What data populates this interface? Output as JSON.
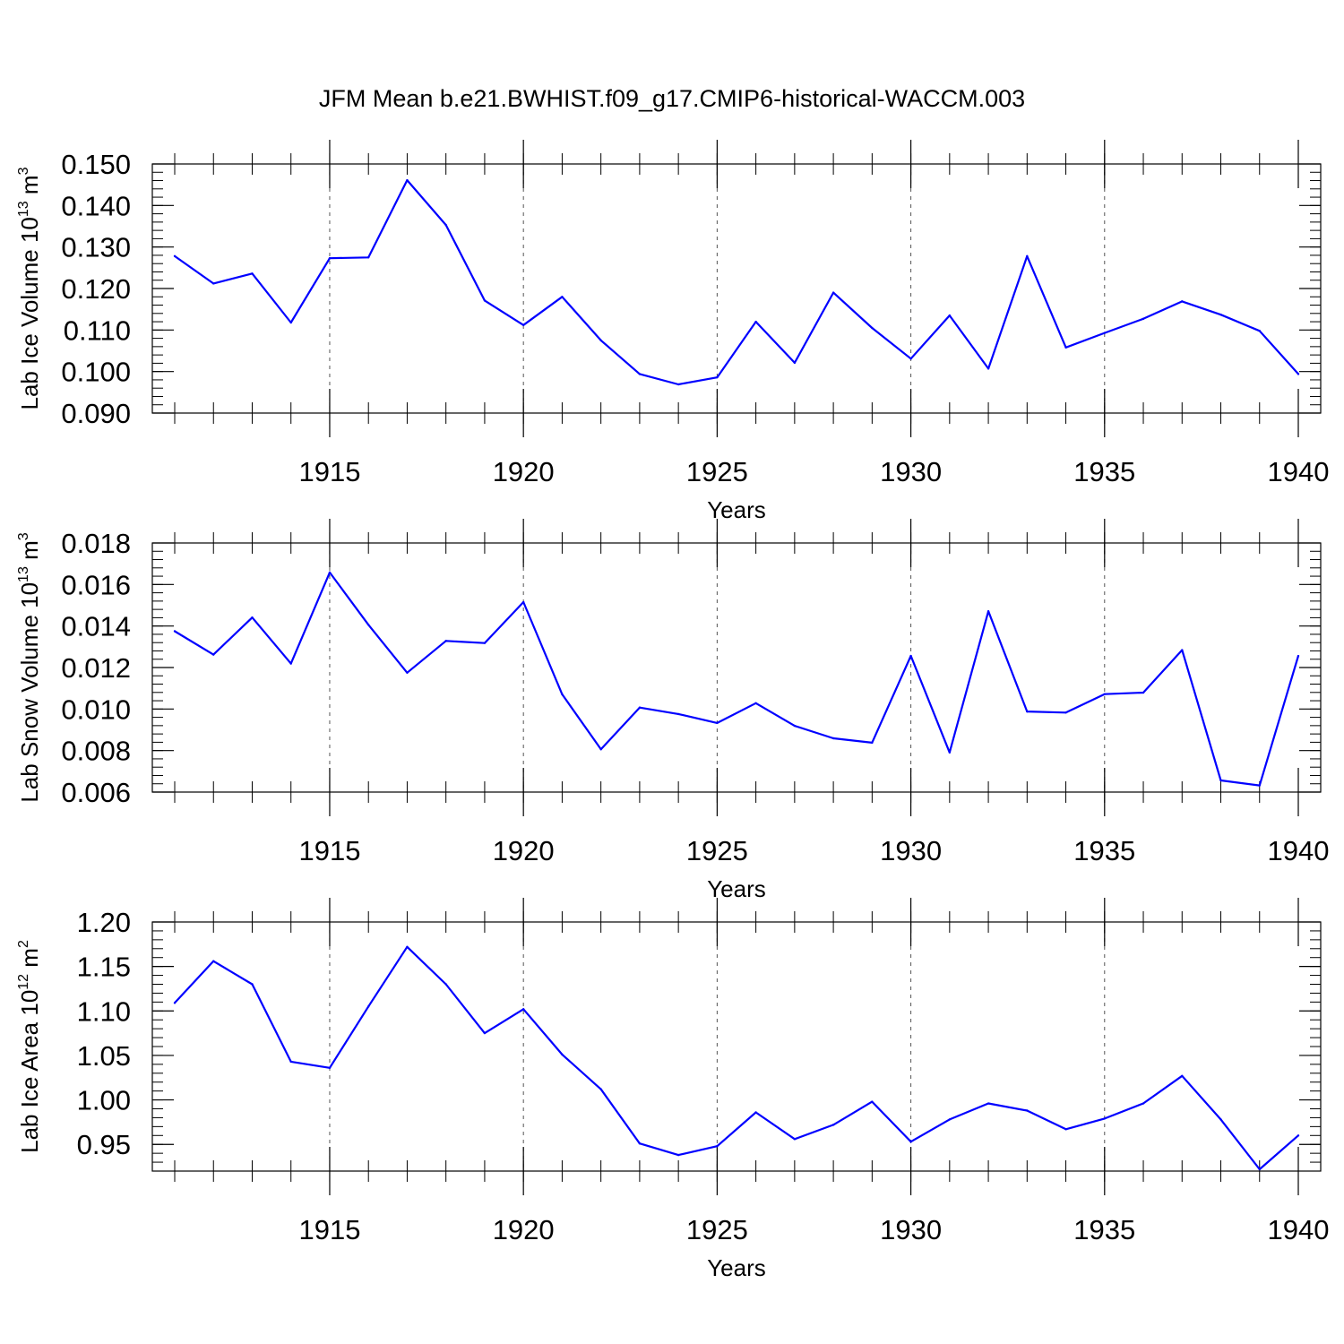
{
  "title": "JFM Mean b.e21.BWHIST.f09_g17.CMIP6-historical-WACCM.003",
  "colors": {
    "line": "#0000ff",
    "axis": "#000000",
    "grid": "#555555",
    "background": "#ffffff"
  },
  "chart_data": [
    {
      "type": "line",
      "title": "JFM Mean b.e21.BWHIST.f09_g17.CMIP6-historical-WACCM.003",
      "xlabel": "Years",
      "ylabel": {
        "name": "Lab Ice Volume",
        "base": "10",
        "exp": "13",
        "unit": "m",
        "unit_exp": "3"
      },
      "xlim": [
        1911,
        1940
      ],
      "ylim": [
        0.09,
        0.15
      ],
      "x_ticks": [
        "1915",
        "1920",
        "1925",
        "1930",
        "1935",
        "1940"
      ],
      "y_ticks": [
        "0.090",
        "0.100",
        "0.110",
        "0.120",
        "0.130",
        "0.140",
        "0.150"
      ],
      "grid": "vertical dashed at major x ticks",
      "x": [
        1911,
        1912,
        1913,
        1914,
        1915,
        1916,
        1917,
        1918,
        1919,
        1920,
        1921,
        1922,
        1923,
        1924,
        1925,
        1926,
        1927,
        1928,
        1929,
        1930,
        1931,
        1932,
        1933,
        1934,
        1935,
        1936,
        1937,
        1938,
        1939,
        1940
      ],
      "values": [
        0.1278,
        0.1212,
        0.1236,
        0.1118,
        0.1273,
        0.1275,
        0.1461,
        0.1353,
        0.1171,
        0.1112,
        0.118,
        0.1075,
        0.0994,
        0.0969,
        0.0986,
        0.112,
        0.1021,
        0.119,
        0.1105,
        0.1031,
        0.1135,
        0.1007,
        0.1278,
        0.1058,
        0.1093,
        0.1127,
        0.1169,
        0.1137,
        0.1098,
        0.0994
      ]
    },
    {
      "type": "line",
      "xlabel": "Years",
      "ylabel": {
        "name": "Lab Snow Volume",
        "base": "10",
        "exp": "13",
        "unit": "m",
        "unit_exp": "3"
      },
      "xlim": [
        1911,
        1940
      ],
      "ylim": [
        0.006,
        0.018
      ],
      "x_ticks": [
        "1915",
        "1920",
        "1925",
        "1930",
        "1935",
        "1940"
      ],
      "y_ticks": [
        "0.006",
        "0.008",
        "0.010",
        "0.012",
        "0.014",
        "0.016",
        "0.018"
      ],
      "grid": "vertical dashed at major x ticks",
      "x": [
        1911,
        1912,
        1913,
        1914,
        1915,
        1916,
        1917,
        1918,
        1919,
        1920,
        1921,
        1922,
        1923,
        1924,
        1925,
        1926,
        1927,
        1928,
        1929,
        1930,
        1931,
        1932,
        1933,
        1934,
        1935,
        1936,
        1937,
        1938,
        1939,
        1940
      ],
      "values": [
        0.01375,
        0.01262,
        0.01441,
        0.01219,
        0.01658,
        0.01406,
        0.01175,
        0.01328,
        0.01318,
        0.01515,
        0.01071,
        0.00806,
        0.01007,
        0.00976,
        0.00933,
        0.01028,
        0.00919,
        0.00859,
        0.00838,
        0.01256,
        0.00791,
        0.01471,
        0.00988,
        0.00983,
        0.01072,
        0.01079,
        0.01284,
        0.00656,
        0.00632,
        0.01256
      ]
    },
    {
      "type": "line",
      "xlabel": "Years",
      "ylabel": {
        "name": "Lab Ice Area",
        "base": "10",
        "exp": "12",
        "unit": "m",
        "unit_exp": "2"
      },
      "xlim": [
        1911,
        1940
      ],
      "ylim": [
        0.92,
        1.2
      ],
      "x_ticks": [
        "1915",
        "1920",
        "1925",
        "1930",
        "1935",
        "1940"
      ],
      "y_ticks": [
        "0.95",
        "1.00",
        "1.05",
        "1.10",
        "1.15",
        "1.20"
      ],
      "grid": "vertical dashed at major x ticks",
      "x": [
        1911,
        1912,
        1913,
        1914,
        1915,
        1916,
        1917,
        1918,
        1919,
        1920,
        1921,
        1922,
        1923,
        1924,
        1925,
        1926,
        1927,
        1928,
        1929,
        1930,
        1931,
        1932,
        1933,
        1934,
        1935,
        1936,
        1937,
        1938,
        1939,
        1940
      ],
      "values": [
        1.109,
        1.156,
        1.13,
        1.043,
        1.036,
        1.105,
        1.172,
        1.13,
        1.075,
        1.102,
        1.051,
        1.012,
        0.951,
        0.938,
        0.948,
        0.986,
        0.956,
        0.972,
        0.998,
        0.953,
        0.978,
        0.996,
        0.988,
        0.967,
        0.979,
        0.996,
        1.027,
        0.978,
        0.922,
        0.96
      ]
    }
  ]
}
